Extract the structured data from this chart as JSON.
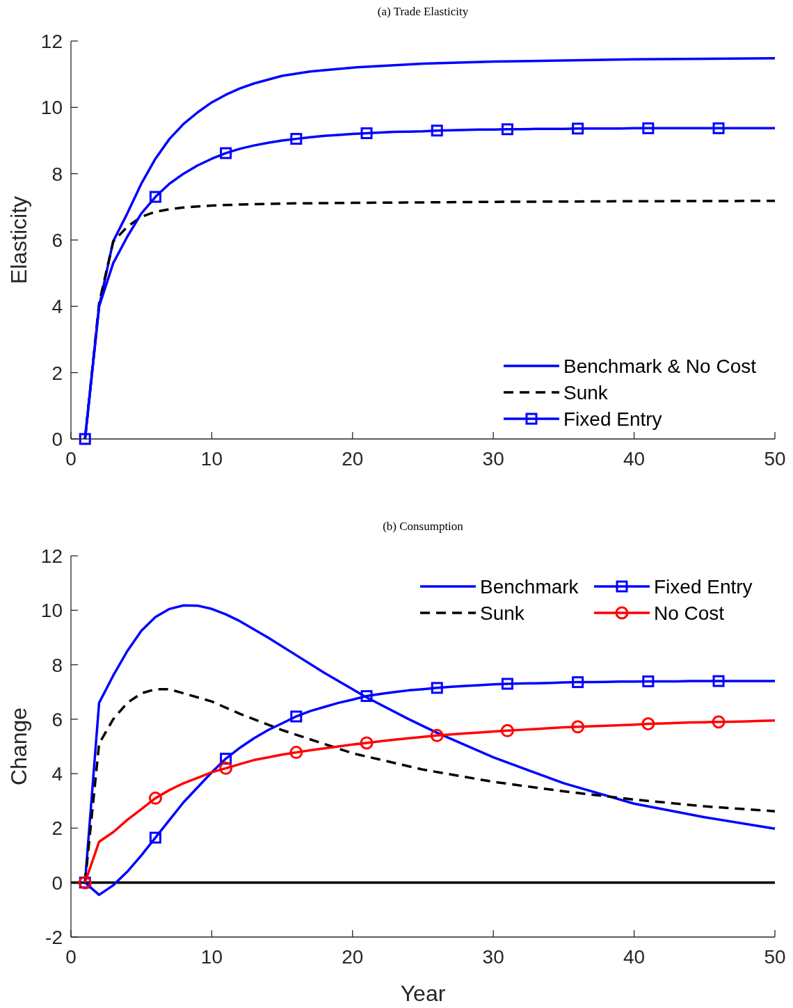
{
  "chart_data": [
    {
      "type": "line",
      "title": "(a) Trade Elasticity",
      "ylabel": "Elasticity",
      "xlim": [
        0,
        50
      ],
      "xticks": [
        0,
        10,
        20,
        30,
        40,
        50
      ],
      "ylim": [
        0,
        12
      ],
      "yticks": [
        0,
        2,
        4,
        6,
        8,
        10,
        12
      ],
      "grid": false,
      "legend": "bottom right",
      "series": [
        {
          "name": "Benchmark & No Cost",
          "color": "#0000ff",
          "line_style": "solid",
          "marker": "none",
          "x": [
            1,
            2,
            3,
            4,
            5,
            6,
            7,
            8,
            9,
            10,
            11,
            12,
            13,
            15,
            17,
            20,
            25,
            30,
            40,
            50
          ],
          "values": [
            0,
            4.0,
            5.96,
            6.8,
            7.7,
            8.45,
            9.05,
            9.5,
            9.85,
            10.15,
            10.38,
            10.57,
            10.72,
            10.95,
            11.08,
            11.2,
            11.32,
            11.38,
            11.45,
            11.48
          ]
        },
        {
          "name": "Sunk",
          "color": "#000000",
          "line_style": "dashed",
          "marker": "none",
          "x": [
            1,
            2,
            3,
            4,
            5,
            6,
            7,
            8,
            10,
            12,
            15,
            20,
            30,
            40,
            50
          ],
          "values": [
            0,
            4.1,
            5.95,
            6.4,
            6.7,
            6.85,
            6.93,
            6.98,
            7.04,
            7.07,
            7.1,
            7.12,
            7.15,
            7.17,
            7.18
          ]
        },
        {
          "type": "scatter",
          "name": "Fixed Entry",
          "color": "#0000ff",
          "marker": "square",
          "x": [
            1,
            6,
            11,
            16,
            21,
            26,
            31,
            36,
            41,
            46
          ],
          "values": [
            0,
            7.3,
            8.62,
            9.05,
            9.22,
            9.3,
            9.34,
            9.36,
            9.37,
            9.37
          ]
        },
        {
          "color": "#0000ff",
          "line_style": "solid",
          "marker": "none",
          "x": [
            1,
            2,
            3,
            4,
            5,
            6,
            7,
            8,
            9,
            10,
            11,
            12,
            13,
            14,
            15,
            16,
            17,
            18,
            19,
            20,
            21,
            22,
            23,
            24,
            25,
            26,
            27,
            28,
            29,
            30,
            31,
            32,
            33,
            34,
            35,
            36,
            37,
            38,
            39,
            40,
            41,
            42,
            43,
            44,
            45,
            46,
            47,
            48,
            49,
            50
          ],
          "values": [
            0,
            4.0,
            5.3,
            6.1,
            6.8,
            7.3,
            7.7,
            8.0,
            8.25,
            8.45,
            8.62,
            8.75,
            8.85,
            8.93,
            9.0,
            9.05,
            9.1,
            9.14,
            9.17,
            9.2,
            9.22,
            9.24,
            9.26,
            9.27,
            9.28,
            9.3,
            9.31,
            9.32,
            9.33,
            9.33,
            9.34,
            9.34,
            9.35,
            9.35,
            9.35,
            9.36,
            9.36,
            9.36,
            9.36,
            9.37,
            9.37,
            9.37,
            9.37,
            9.37,
            9.37,
            9.37,
            9.37,
            9.37,
            9.37,
            9.37
          ]
        }
      ]
    },
    {
      "type": "line",
      "title": "(b) Consumption",
      "xlabel": "Year",
      "ylabel": "Change",
      "xlim": [
        0,
        50
      ],
      "xticks": [
        0,
        10,
        20,
        30,
        40,
        50
      ],
      "ylim": [
        -2,
        12
      ],
      "yticks": [
        -2,
        0,
        2,
        4,
        6,
        8,
        10,
        12
      ],
      "grid": false,
      "legend": "top right",
      "ref_lines": [
        {
          "axis": "y",
          "value": 0,
          "color": "#000000"
        }
      ],
      "series": [
        {
          "name": "Benchmark",
          "color": "#0000ff",
          "line_style": "solid",
          "marker": "none",
          "x": [
            1,
            2,
            3,
            4,
            5,
            6,
            7,
            8,
            9,
            10,
            11,
            12,
            14,
            16,
            18,
            20,
            21,
            24,
            26,
            30,
            35,
            40,
            45,
            50
          ],
          "values": [
            0,
            6.6,
            7.6,
            8.5,
            9.25,
            9.75,
            10.05,
            10.18,
            10.17,
            10.05,
            9.85,
            9.6,
            9.0,
            8.35,
            7.7,
            7.1,
            6.8,
            6.0,
            5.5,
            4.6,
            3.65,
            2.9,
            2.4,
            1.98
          ]
        },
        {
          "name": "Sunk",
          "color": "#000000",
          "line_style": "dashed",
          "marker": "none",
          "x": [
            1,
            2,
            3,
            4,
            5,
            6,
            7,
            8,
            10,
            12,
            15,
            20,
            25,
            30,
            35,
            40,
            45,
            50
          ],
          "values": [
            0,
            5.1,
            6.0,
            6.6,
            6.95,
            7.1,
            7.1,
            6.95,
            6.65,
            6.2,
            5.6,
            4.75,
            4.15,
            3.7,
            3.35,
            3.05,
            2.8,
            2.62
          ]
        },
        {
          "type": "scatter",
          "name": "Fixed Entry",
          "color": "#0000ff",
          "marker": "square",
          "x": [
            1,
            6,
            11,
            16,
            21,
            26,
            31,
            36,
            41,
            46
          ],
          "values": [
            0,
            1.65,
            4.55,
            6.1,
            6.85,
            7.15,
            7.3,
            7.36,
            7.39,
            7.4
          ]
        },
        {
          "type": "scatter",
          "name": "No Cost",
          "color": "#ff0000",
          "marker": "circle",
          "x": [
            1,
            6,
            11,
            16,
            21,
            26,
            31,
            36,
            41,
            46
          ],
          "values": [
            0,
            3.1,
            4.2,
            4.78,
            5.13,
            5.4,
            5.58,
            5.72,
            5.83,
            5.9
          ]
        },
        {
          "color": "#0000ff",
          "line_style": "solid",
          "marker": "none",
          "x": [
            1,
            2,
            3,
            4,
            5,
            6,
            7,
            8,
            9,
            10,
            11,
            12,
            13,
            14,
            15,
            16,
            17,
            18,
            19,
            20,
            21,
            22,
            23,
            24,
            25,
            26,
            27,
            28,
            29,
            30,
            31,
            32,
            33,
            34,
            35,
            36,
            37,
            38,
            39,
            40,
            41,
            42,
            43,
            44,
            45,
            46,
            47,
            48,
            49,
            50
          ],
          "values": [
            0,
            -0.45,
            -0.1,
            0.4,
            1.0,
            1.65,
            2.3,
            2.95,
            3.5,
            4.05,
            4.55,
            4.95,
            5.3,
            5.6,
            5.85,
            6.1,
            6.3,
            6.45,
            6.6,
            6.72,
            6.85,
            6.93,
            7.0,
            7.06,
            7.1,
            7.15,
            7.19,
            7.22,
            7.25,
            7.28,
            7.3,
            7.31,
            7.32,
            7.33,
            7.35,
            7.36,
            7.36,
            7.37,
            7.38,
            7.38,
            7.39,
            7.39,
            7.39,
            7.4,
            7.4,
            7.4,
            7.4,
            7.4,
            7.4,
            7.4
          ]
        },
        {
          "color": "#ff0000",
          "line_style": "solid",
          "marker": "none",
          "x": [
            1,
            2,
            3,
            4,
            5,
            6,
            7,
            8,
            9,
            10,
            11,
            12,
            13,
            14,
            15,
            16,
            17,
            18,
            19,
            20,
            21,
            22,
            23,
            24,
            25,
            26,
            27,
            28,
            29,
            30,
            31,
            32,
            33,
            34,
            35,
            36,
            37,
            38,
            39,
            40,
            41,
            42,
            43,
            44,
            45,
            46,
            47,
            48,
            49,
            50
          ],
          "values": [
            0,
            1.5,
            1.85,
            2.3,
            2.7,
            3.1,
            3.4,
            3.65,
            3.85,
            4.05,
            4.2,
            4.35,
            4.5,
            4.6,
            4.7,
            4.78,
            4.86,
            4.93,
            5.0,
            5.07,
            5.13,
            5.19,
            5.25,
            5.3,
            5.35,
            5.4,
            5.44,
            5.48,
            5.51,
            5.55,
            5.58,
            5.61,
            5.64,
            5.67,
            5.7,
            5.72,
            5.74,
            5.76,
            5.78,
            5.8,
            5.83,
            5.84,
            5.86,
            5.88,
            5.89,
            5.9,
            5.91,
            5.92,
            5.94,
            5.95
          ]
        }
      ]
    }
  ]
}
